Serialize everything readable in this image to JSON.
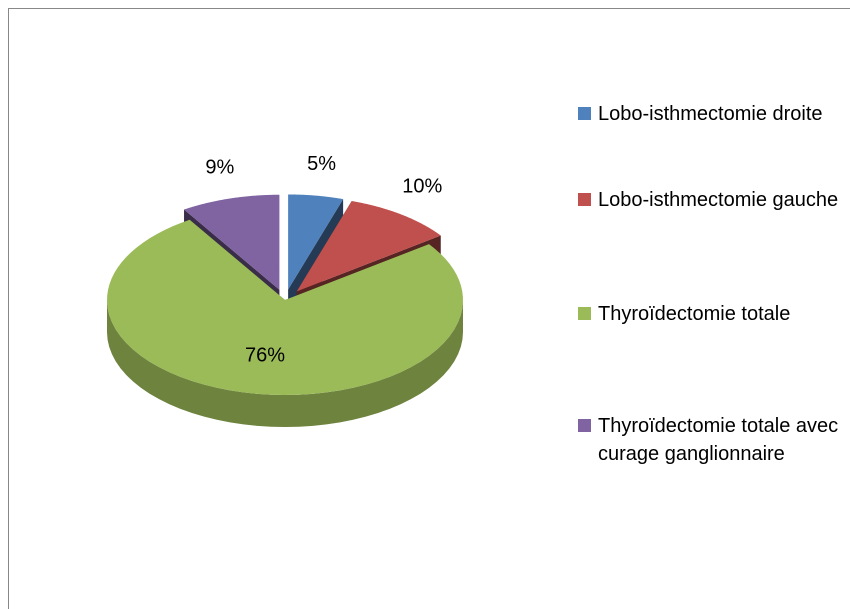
{
  "chart_data": {
    "type": "pie",
    "categories": [
      "Lobo-isthmectomie droite",
      "Lobo-isthmectomie gauche",
      "Thyroïdectomie totale",
      "Thyroïdectomie totale avec curage ganglionnaire"
    ],
    "values": [
      5,
      10,
      76,
      9
    ],
    "value_labels": [
      "5%",
      "10%",
      "76%",
      "9%"
    ],
    "colors": [
      "#4f81bd",
      "#c0504d",
      "#9bbb59",
      "#8064a2"
    ],
    "legend": "right"
  }
}
